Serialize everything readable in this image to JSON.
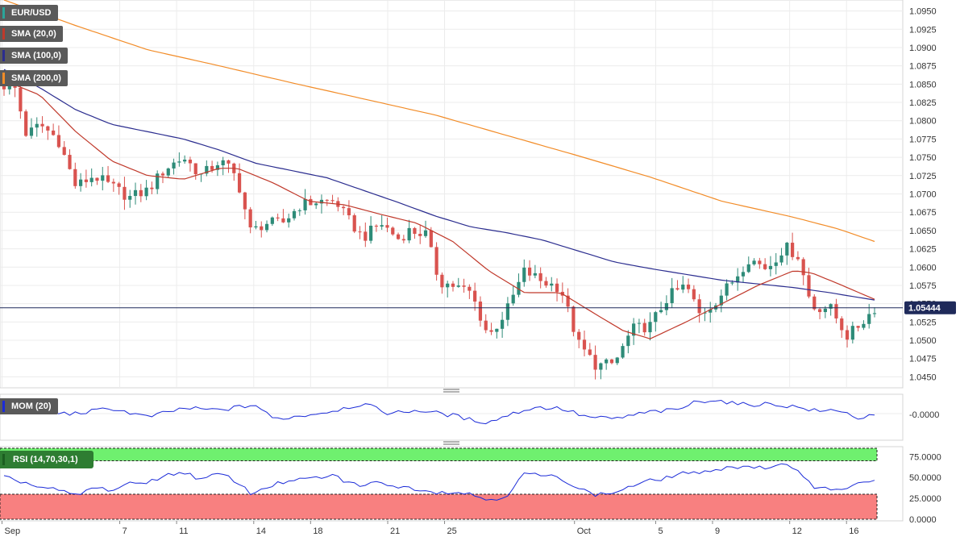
{
  "chart_data": [
    {
      "panel": "price",
      "type": "candlestick",
      "instrument": "EUR/USD",
      "indicators": [
        {
          "name": "SMA (20,0)",
          "color": "#c0392b"
        },
        {
          "name": "SMA (100,0)",
          "color": "#2b2d8f"
        },
        {
          "name": "SMA (200,0)",
          "color": "#f28c28"
        }
      ],
      "ylim": [
        1.0435,
        1.0965
      ],
      "yticks": [
        "1.0950",
        "1.0925",
        "1.0900",
        "1.0875",
        "1.0850",
        "1.0825",
        "1.0800",
        "1.0775",
        "1.0750",
        "1.0725",
        "1.0700",
        "1.0675",
        "1.0650",
        "1.0625",
        "1.0600",
        "1.0575",
        "1.0550",
        "1.0525",
        "1.0500",
        "1.0475",
        "1.0450"
      ],
      "last_price": "1.05444",
      "last_price_value": 1.05444,
      "candle_count": 160,
      "close_anchors": [
        [
          0,
          1.0848
        ],
        [
          2,
          1.0855
        ],
        [
          5,
          1.078
        ],
        [
          8,
          1.0795
        ],
        [
          12,
          1.0775
        ],
        [
          16,
          1.071
        ],
        [
          20,
          1.0725
        ],
        [
          24,
          1.071
        ],
        [
          28,
          1.0695
        ],
        [
          32,
          1.0705
        ],
        [
          36,
          1.0735
        ],
        [
          40,
          1.075
        ],
        [
          44,
          1.0725
        ],
        [
          48,
          1.0745
        ],
        [
          50,
          1.0736
        ],
        [
          52,
          1.072
        ],
        [
          55,
          1.0647
        ],
        [
          58,
          1.066
        ],
        [
          62,
          1.066
        ],
        [
          66,
          1.0685
        ],
        [
          70,
          1.069
        ],
        [
          74,
          1.069
        ],
        [
          76,
          1.067
        ],
        [
          80,
          1.064
        ],
        [
          84,
          1.066
        ],
        [
          88,
          1.0638
        ],
        [
          90,
          1.065
        ],
        [
          94,
          1.0645
        ],
        [
          97,
          1.058
        ],
        [
          100,
          1.0575
        ],
        [
          104,
          1.0565
        ],
        [
          108,
          1.0505
        ],
        [
          112,
          1.054
        ],
        [
          116,
          1.0595
        ],
        [
          120,
          1.058
        ],
        [
          124,
          1.0572
        ],
        [
          128,
          1.0495
        ],
        [
          132,
          1.0465
        ],
        [
          136,
          1.0468
        ],
        [
          140,
          1.0515
        ],
        [
          144,
          1.052
        ],
        [
          148,
          1.056
        ],
        [
          152,
          1.0575
        ],
        [
          155,
          1.0535
        ],
        [
          158,
          1.055
        ],
        [
          162,
          1.0578
        ],
        [
          166,
          1.0612
        ],
        [
          170,
          1.0598
        ],
        [
          174,
          1.0628
        ],
        [
          177,
          1.0615
        ],
        [
          180,
          1.0545
        ],
        [
          184,
          1.0545
        ],
        [
          188,
          1.0505
        ],
        [
          192,
          1.053
        ],
        [
          194,
          1.0544
        ]
      ],
      "sma20_anchors": [
        [
          0,
          1.0855
        ],
        [
          8,
          1.0835
        ],
        [
          16,
          1.0785
        ],
        [
          24,
          1.0745
        ],
        [
          32,
          1.0725
        ],
        [
          40,
          1.072
        ],
        [
          48,
          1.0735
        ],
        [
          52,
          1.0735
        ],
        [
          60,
          1.0715
        ],
        [
          68,
          1.069
        ],
        [
          76,
          1.0685
        ],
        [
          84,
          1.0672
        ],
        [
          92,
          1.066
        ],
        [
          100,
          1.0635
        ],
        [
          108,
          1.0595
        ],
        [
          116,
          1.0565
        ],
        [
          124,
          1.0565
        ],
        [
          132,
          1.0535
        ],
        [
          138,
          1.0513
        ],
        [
          144,
          1.0502
        ],
        [
          152,
          1.0525
        ],
        [
          160,
          1.055
        ],
        [
          168,
          1.0575
        ],
        [
          176,
          1.0595
        ],
        [
          180,
          1.0592
        ],
        [
          186,
          1.0577
        ],
        [
          194,
          1.0556
        ]
      ],
      "sma100_anchors": [
        [
          0,
          1.087
        ],
        [
          8,
          1.0845
        ],
        [
          16,
          1.0815
        ],
        [
          24,
          1.0795
        ],
        [
          32,
          1.0785
        ],
        [
          40,
          1.0775
        ],
        [
          48,
          1.076
        ],
        [
          56,
          1.0742
        ],
        [
          64,
          1.0732
        ],
        [
          72,
          1.0722
        ],
        [
          80,
          1.0705
        ],
        [
          88,
          1.0688
        ],
        [
          96,
          1.067
        ],
        [
          104,
          1.0655
        ],
        [
          112,
          1.0647
        ],
        [
          120,
          1.0637
        ],
        [
          128,
          1.0622
        ],
        [
          136,
          1.0607
        ],
        [
          144,
          1.0598
        ],
        [
          152,
          1.059
        ],
        [
          160,
          1.0582
        ],
        [
          168,
          1.0577
        ],
        [
          176,
          1.0572
        ],
        [
          184,
          1.0565
        ],
        [
          194,
          1.0555
        ]
      ],
      "sma200_anchors": [
        [
          0,
          1.0965
        ],
        [
          16,
          1.093
        ],
        [
          32,
          1.0897
        ],
        [
          48,
          1.0875
        ],
        [
          64,
          1.0852
        ],
        [
          80,
          1.083
        ],
        [
          96,
          1.0808
        ],
        [
          112,
          1.078
        ],
        [
          128,
          1.0752
        ],
        [
          144,
          1.0723
        ],
        [
          160,
          1.069
        ],
        [
          176,
          1.0668
        ],
        [
          186,
          1.0652
        ],
        [
          194,
          1.0635
        ]
      ]
    },
    {
      "panel": "momentum",
      "type": "line",
      "name": "MOM (20)",
      "color": "#1b2bd8",
      "ytick": "-0.0000",
      "anchors": [
        [
          0,
          0.15
        ],
        [
          8,
          0.05
        ],
        [
          16,
          0.0
        ],
        [
          24,
          0.3
        ],
        [
          32,
          -0.2
        ],
        [
          40,
          0.3
        ],
        [
          48,
          0.2
        ],
        [
          56,
          0.5
        ],
        [
          60,
          -0.3
        ],
        [
          64,
          -0.2
        ],
        [
          72,
          0.1
        ],
        [
          80,
          0.55
        ],
        [
          86,
          0.0
        ],
        [
          92,
          0.2
        ],
        [
          100,
          -0.1
        ],
        [
          104,
          -0.35
        ],
        [
          108,
          -0.5
        ],
        [
          112,
          -0.1
        ],
        [
          118,
          0.35
        ],
        [
          124,
          0.3
        ],
        [
          130,
          -0.2
        ],
        [
          136,
          -0.3
        ],
        [
          144,
          0.1
        ],
        [
          150,
          0.2
        ],
        [
          154,
          0.65
        ],
        [
          158,
          0.8
        ],
        [
          164,
          0.5
        ],
        [
          170,
          0.55
        ],
        [
          176,
          0.4
        ],
        [
          182,
          0.1
        ],
        [
          186,
          0.25
        ],
        [
          190,
          -0.25
        ],
        [
          194,
          -0.15
        ]
      ]
    },
    {
      "panel": "rsi",
      "type": "line",
      "name": "RSI (14,70,30,1)",
      "color": "#1b2bd8",
      "overbought": 70,
      "oversold": 30,
      "ylim": [
        0,
        85
      ],
      "yticks": [
        "75.0000",
        "50.0000",
        "25.0000",
        "0.0000"
      ],
      "anchors": [
        [
          0,
          50
        ],
        [
          4,
          45
        ],
        [
          8,
          38
        ],
        [
          12,
          35
        ],
        [
          16,
          28
        ],
        [
          20,
          38
        ],
        [
          24,
          35
        ],
        [
          28,
          42
        ],
        [
          32,
          45
        ],
        [
          36,
          52
        ],
        [
          40,
          57
        ],
        [
          44,
          47
        ],
        [
          48,
          55
        ],
        [
          52,
          45
        ],
        [
          55,
          30
        ],
        [
          58,
          38
        ],
        [
          62,
          44
        ],
        [
          66,
          47
        ],
        [
          70,
          50
        ],
        [
          74,
          52
        ],
        [
          76,
          45
        ],
        [
          80,
          40
        ],
        [
          84,
          45
        ],
        [
          88,
          38
        ],
        [
          90,
          38
        ],
        [
          94,
          35
        ],
        [
          97,
          32
        ],
        [
          100,
          33
        ],
        [
          104,
          30
        ],
        [
          108,
          23
        ],
        [
          112,
          28
        ],
        [
          116,
          55
        ],
        [
          120,
          52
        ],
        [
          124,
          50
        ],
        [
          128,
          37
        ],
        [
          132,
          29
        ],
        [
          136,
          32
        ],
        [
          140,
          40
        ],
        [
          144,
          46
        ],
        [
          148,
          50
        ],
        [
          152,
          57
        ],
        [
          155,
          53
        ],
        [
          158,
          60
        ],
        [
          162,
          62
        ],
        [
          166,
          64
        ],
        [
          170,
          60
        ],
        [
          174,
          65
        ],
        [
          177,
          60
        ],
        [
          180,
          40
        ],
        [
          184,
          36
        ],
        [
          188,
          38
        ],
        [
          192,
          44
        ],
        [
          194,
          48
        ]
      ]
    }
  ],
  "xaxis": {
    "labels": [
      {
        "text": "Sep",
        "x": 0
      },
      {
        "text": "7",
        "x": 29
      },
      {
        "text": "11",
        "x": 43
      },
      {
        "text": "14",
        "x": 62
      },
      {
        "text": "18",
        "x": 76
      },
      {
        "text": "21",
        "x": 95
      },
      {
        "text": "25",
        "x": 109
      },
      {
        "text": "Oct",
        "x": 141
      },
      {
        "text": "5",
        "x": 161
      },
      {
        "text": "9",
        "x": 175
      },
      {
        "text": "12",
        "x": 194
      },
      {
        "text": "16",
        "x": 208
      }
    ]
  }
}
